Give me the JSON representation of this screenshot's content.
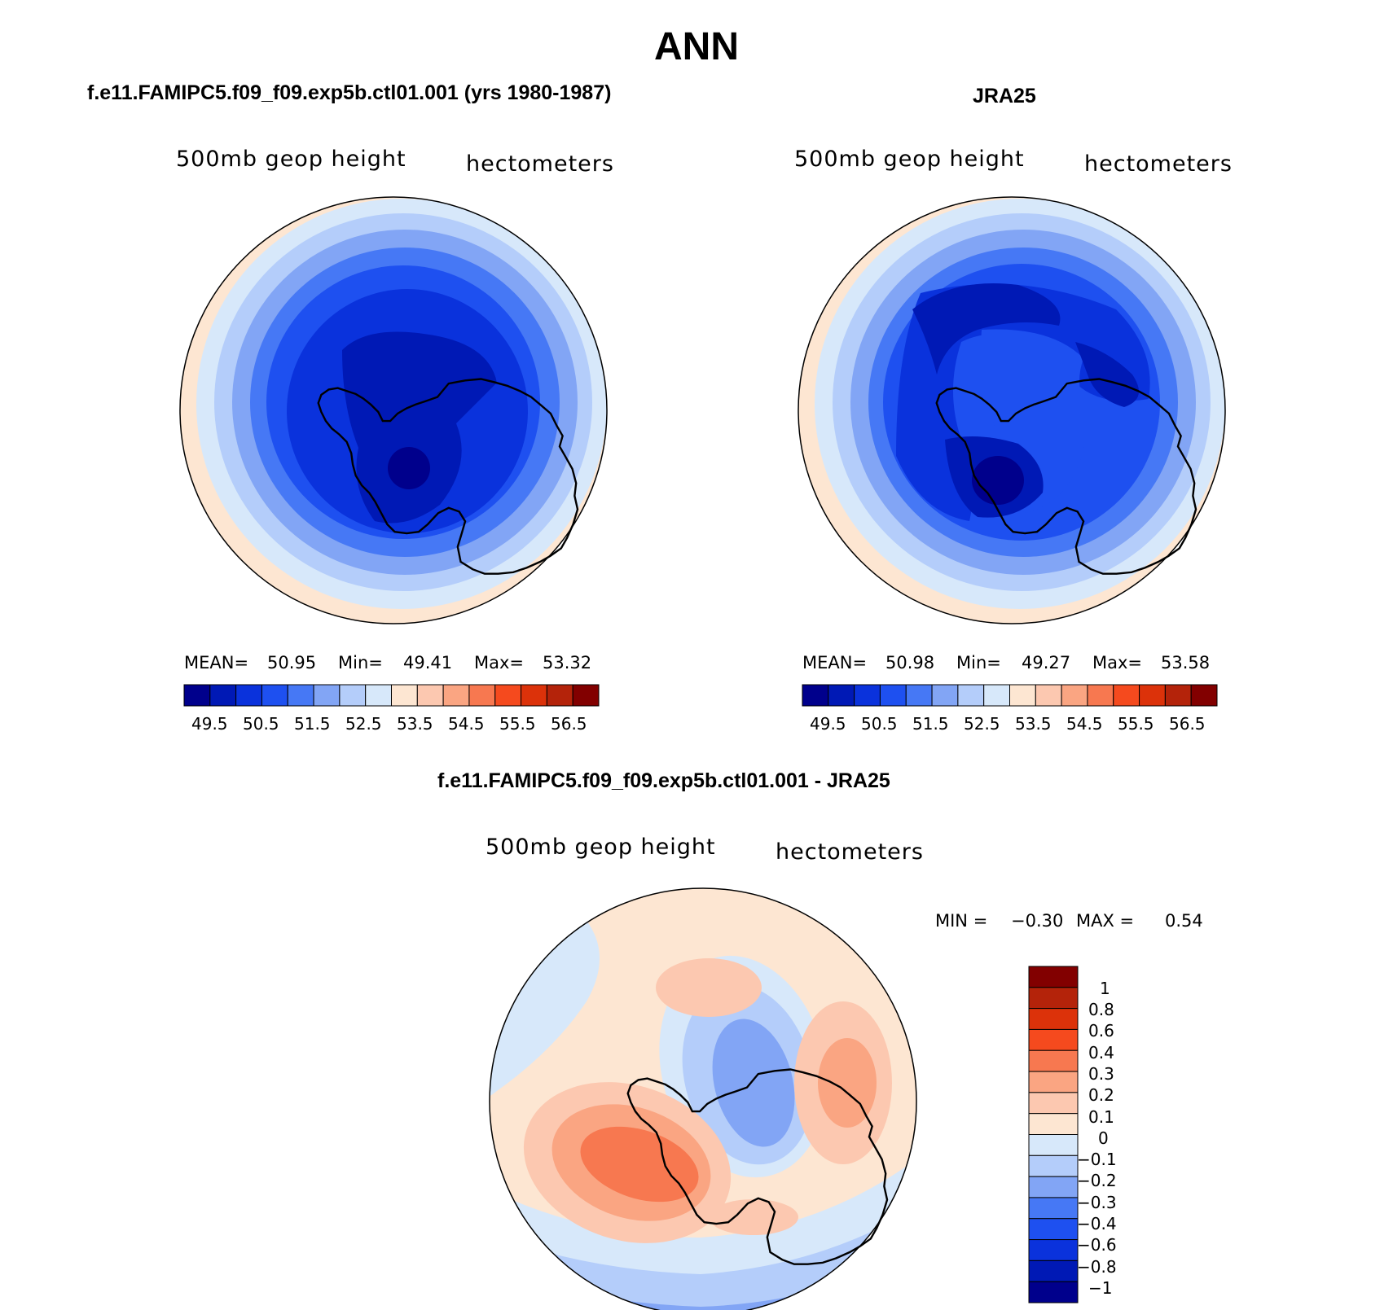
{
  "main_title": "ANN",
  "panels": [
    {
      "title": "f.e11.FAMIPC5.f09_f09.exp5b.ctl01.001 (yrs 1980-1987)",
      "left_label": "500mb geop height",
      "right_label": "hectometers",
      "stats": {
        "mean_label": "MEAN=",
        "mean": "50.95",
        "min_label": "Min=",
        "min": "49.41",
        "max_label": "Max=",
        "max": "53.32"
      },
      "colorbar_ticks": [
        "49.5",
        "50.5",
        "51.5",
        "52.5",
        "53.5",
        "54.5",
        "55.5",
        "56.5"
      ]
    },
    {
      "title": "JRA25",
      "left_label": "500mb geop height",
      "right_label": "hectometers",
      "stats": {
        "mean_label": "MEAN=",
        "mean": "50.98",
        "min_label": "Min=",
        "min": "49.27",
        "max_label": "Max=",
        "max": "53.58"
      },
      "colorbar_ticks": [
        "49.5",
        "50.5",
        "51.5",
        "52.5",
        "53.5",
        "54.5",
        "55.5",
        "56.5"
      ]
    },
    {
      "title": "f.e11.FAMIPC5.f09_f09.exp5b.ctl01.001 - JRA25",
      "left_label": "500mb geop height",
      "right_label": "hectometers",
      "stats": {
        "min_label": "MIN =",
        "min": "−0.30",
        "max_label": "MAX =",
        "max": "0.54"
      },
      "colorbar_ticks": [
        "1",
        "0.8",
        "0.6",
        "0.4",
        "0.3",
        "0.2",
        "0.1",
        "0",
        "−0.1",
        "−0.2",
        "−0.3",
        "−0.4",
        "−0.6",
        "−0.8",
        "−1"
      ]
    }
  ],
  "colors": {
    "abs_scale": [
      "#00008c",
      "#0019b5",
      "#0a32dc",
      "#1e50f0",
      "#4678f5",
      "#82a5f5",
      "#b4cdfa",
      "#d7e8fa",
      "#fde6d2",
      "#fcc8b0",
      "#faa582",
      "#f77850",
      "#f54a1e",
      "#dc320a",
      "#b4230a",
      "#820000"
    ],
    "diff_scale_top_to_bottom": [
      "#820000",
      "#b4230a",
      "#dc320a",
      "#f54a1e",
      "#f77850",
      "#faa582",
      "#fcc8b0",
      "#fde6d2",
      "#d7e8fa",
      "#b4cdfa",
      "#82a5f5",
      "#4678f5",
      "#1e50f0",
      "#0a32dc",
      "#0019b5",
      "#00008c"
    ]
  }
}
